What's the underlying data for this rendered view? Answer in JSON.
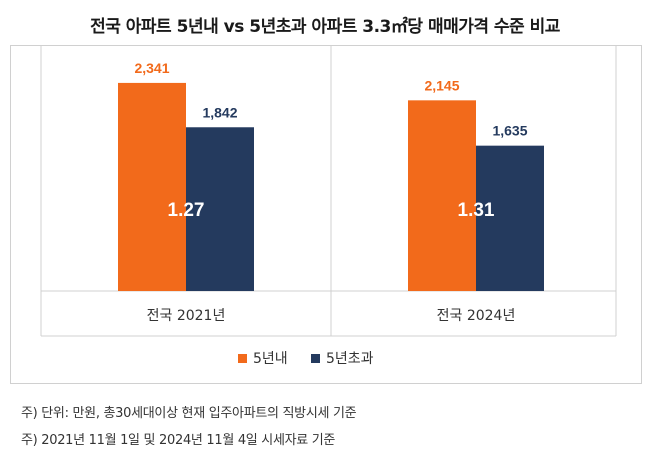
{
  "title": "전국 아파트 5년내  vs 5년초과 아파트 3.3㎡당 매매가격 수준 비교",
  "chart_data": {
    "type": "bar",
    "title": "전국 아파트 5년내  vs 5년초과 아파트 3.3㎡당 매매가격 수준 비교",
    "categories": [
      "전국   2021년",
      "전국   2024년"
    ],
    "series": [
      {
        "name": "5년내",
        "values": [
          2341,
          2145
        ],
        "labels": [
          "2,341",
          "2,145"
        ],
        "color": "#F26A1B"
      },
      {
        "name": "5년초과",
        "values": [
          1842,
          1635
        ],
        "labels": [
          "1,842",
          "1,635"
        ],
        "color": "#243A5E"
      }
    ],
    "ratios": [
      "1.27",
      "1.31"
    ],
    "ylim": [
      0,
      2700
    ],
    "xlabel": "",
    "ylabel": "",
    "legend": "bottom-center"
  },
  "footnotes": [
    "주) 단위: 만원, 총30세대이상 현재 입주아파트의 직방시세 기준",
    "주) 2021년 11월 1일 및 2024년 11월 4일 시세자료 기준"
  ],
  "colors": {
    "grid": "#d0d0d0",
    "label_orange": "#F26A1B",
    "label_navy": "#243A5E",
    "ratio_text": "#ffffff"
  }
}
